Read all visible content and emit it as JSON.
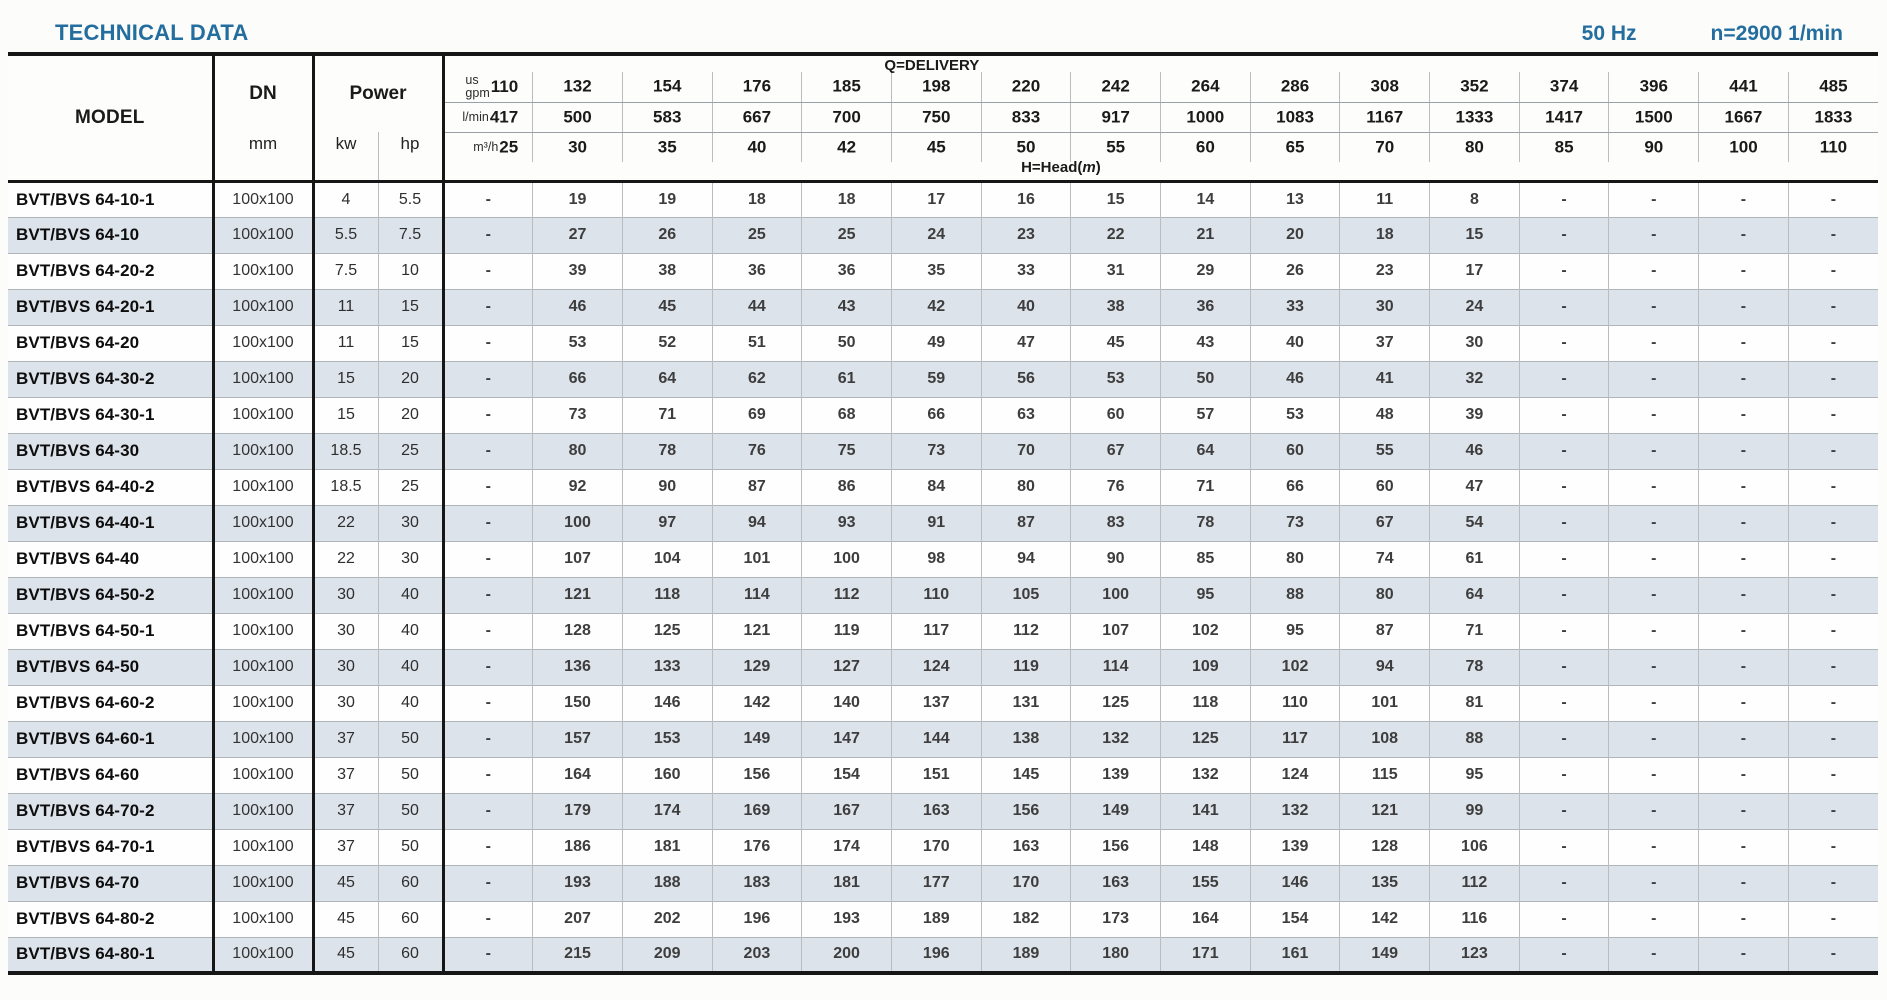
{
  "header": {
    "title": "TECHNICAL DATA",
    "frequency": "50 Hz",
    "speed": "n=2900 1/min",
    "accent_color": "#236d9f"
  },
  "table": {
    "model_header": "MODEL",
    "dn_header": "DN",
    "dn_unit": "mm",
    "power_header": "Power",
    "power_units": [
      "kw",
      "hp"
    ],
    "delivery_header": "Q=DELIVERY",
    "head_label_prefix": "H=Head(",
    "head_label_unit": "m",
    "head_label_suffix": ")",
    "stripe_color": "#dde3ea",
    "flow_units": [
      {
        "label_lines": [
          "us",
          "gpm"
        ],
        "values": [
          "110",
          "132",
          "154",
          "176",
          "185",
          "198",
          "220",
          "242",
          "264",
          "286",
          "308",
          "352",
          "374",
          "396",
          "441",
          "485"
        ]
      },
      {
        "label_lines": [
          "l/min"
        ],
        "values": [
          "417",
          "500",
          "583",
          "667",
          "700",
          "750",
          "833",
          "917",
          "1000",
          "1083",
          "1167",
          "1333",
          "1417",
          "1500",
          "1667",
          "1833"
        ]
      },
      {
        "label_lines": [
          "m³/h"
        ],
        "values": [
          "25",
          "30",
          "35",
          "40",
          "42",
          "45",
          "50",
          "55",
          "60",
          "65",
          "70",
          "80",
          "85",
          "90",
          "100",
          "110"
        ]
      }
    ],
    "rows": [
      {
        "model": "BVT/BVS 64-10-1",
        "dn": "100x100",
        "kw": "4",
        "hp": "5.5",
        "heads": [
          "-",
          "19",
          "19",
          "18",
          "18",
          "17",
          "16",
          "15",
          "14",
          "13",
          "11",
          "8",
          "-",
          "-",
          "-",
          "-"
        ]
      },
      {
        "model": "BVT/BVS 64-10",
        "dn": "100x100",
        "kw": "5.5",
        "hp": "7.5",
        "heads": [
          "-",
          "27",
          "26",
          "25",
          "25",
          "24",
          "23",
          "22",
          "21",
          "20",
          "18",
          "15",
          "-",
          "-",
          "-",
          "-"
        ]
      },
      {
        "model": "BVT/BVS 64-20-2",
        "dn": "100x100",
        "kw": "7.5",
        "hp": "10",
        "heads": [
          "-",
          "39",
          "38",
          "36",
          "36",
          "35",
          "33",
          "31",
          "29",
          "26",
          "23",
          "17",
          "-",
          "-",
          "-",
          "-"
        ]
      },
      {
        "model": "BVT/BVS 64-20-1",
        "dn": "100x100",
        "kw": "11",
        "hp": "15",
        "heads": [
          "-",
          "46",
          "45",
          "44",
          "43",
          "42",
          "40",
          "38",
          "36",
          "33",
          "30",
          "24",
          "-",
          "-",
          "-",
          "-"
        ]
      },
      {
        "model": "BVT/BVS 64-20",
        "dn": "100x100",
        "kw": "11",
        "hp": "15",
        "heads": [
          "-",
          "53",
          "52",
          "51",
          "50",
          "49",
          "47",
          "45",
          "43",
          "40",
          "37",
          "30",
          "-",
          "-",
          "-",
          "-"
        ]
      },
      {
        "model": "BVT/BVS 64-30-2",
        "dn": "100x100",
        "kw": "15",
        "hp": "20",
        "heads": [
          "-",
          "66",
          "64",
          "62",
          "61",
          "59",
          "56",
          "53",
          "50",
          "46",
          "41",
          "32",
          "-",
          "-",
          "-",
          "-"
        ]
      },
      {
        "model": "BVT/BVS 64-30-1",
        "dn": "100x100",
        "kw": "15",
        "hp": "20",
        "heads": [
          "-",
          "73",
          "71",
          "69",
          "68",
          "66",
          "63",
          "60",
          "57",
          "53",
          "48",
          "39",
          "-",
          "-",
          "-",
          "-"
        ]
      },
      {
        "model": "BVT/BVS 64-30",
        "dn": "100x100",
        "kw": "18.5",
        "hp": "25",
        "heads": [
          "-",
          "80",
          "78",
          "76",
          "75",
          "73",
          "70",
          "67",
          "64",
          "60",
          "55",
          "46",
          "-",
          "-",
          "-",
          "-"
        ]
      },
      {
        "model": "BVT/BVS 64-40-2",
        "dn": "100x100",
        "kw": "18.5",
        "hp": "25",
        "heads": [
          "-",
          "92",
          "90",
          "87",
          "86",
          "84",
          "80",
          "76",
          "71",
          "66",
          "60",
          "47",
          "-",
          "-",
          "-",
          "-"
        ]
      },
      {
        "model": "BVT/BVS 64-40-1",
        "dn": "100x100",
        "kw": "22",
        "hp": "30",
        "heads": [
          "-",
          "100",
          "97",
          "94",
          "93",
          "91",
          "87",
          "83",
          "78",
          "73",
          "67",
          "54",
          "-",
          "-",
          "-",
          "-"
        ]
      },
      {
        "model": "BVT/BVS 64-40",
        "dn": "100x100",
        "kw": "22",
        "hp": "30",
        "heads": [
          "-",
          "107",
          "104",
          "101",
          "100",
          "98",
          "94",
          "90",
          "85",
          "80",
          "74",
          "61",
          "-",
          "-",
          "-",
          "-"
        ]
      },
      {
        "model": "BVT/BVS 64-50-2",
        "dn": "100x100",
        "kw": "30",
        "hp": "40",
        "heads": [
          "-",
          "121",
          "118",
          "114",
          "112",
          "110",
          "105",
          "100",
          "95",
          "88",
          "80",
          "64",
          "-",
          "-",
          "-",
          "-"
        ]
      },
      {
        "model": "BVT/BVS 64-50-1",
        "dn": "100x100",
        "kw": "30",
        "hp": "40",
        "heads": [
          "-",
          "128",
          "125",
          "121",
          "119",
          "117",
          "112",
          "107",
          "102",
          "95",
          "87",
          "71",
          "-",
          "-",
          "-",
          "-"
        ]
      },
      {
        "model": "BVT/BVS 64-50",
        "dn": "100x100",
        "kw": "30",
        "hp": "40",
        "heads": [
          "-",
          "136",
          "133",
          "129",
          "127",
          "124",
          "119",
          "114",
          "109",
          "102",
          "94",
          "78",
          "-",
          "-",
          "-",
          "-"
        ]
      },
      {
        "model": "BVT/BVS 64-60-2",
        "dn": "100x100",
        "kw": "30",
        "hp": "40",
        "heads": [
          "-",
          "150",
          "146",
          "142",
          "140",
          "137",
          "131",
          "125",
          "118",
          "110",
          "101",
          "81",
          "-",
          "-",
          "-",
          "-"
        ]
      },
      {
        "model": "BVT/BVS 64-60-1",
        "dn": "100x100",
        "kw": "37",
        "hp": "50",
        "heads": [
          "-",
          "157",
          "153",
          "149",
          "147",
          "144",
          "138",
          "132",
          "125",
          "117",
          "108",
          "88",
          "-",
          "-",
          "-",
          "-"
        ]
      },
      {
        "model": "BVT/BVS 64-60",
        "dn": "100x100",
        "kw": "37",
        "hp": "50",
        "heads": [
          "-",
          "164",
          "160",
          "156",
          "154",
          "151",
          "145",
          "139",
          "132",
          "124",
          "115",
          "95",
          "-",
          "-",
          "-",
          "-"
        ]
      },
      {
        "model": "BVT/BVS 64-70-2",
        "dn": "100x100",
        "kw": "37",
        "hp": "50",
        "heads": [
          "-",
          "179",
          "174",
          "169",
          "167",
          "163",
          "156",
          "149",
          "141",
          "132",
          "121",
          "99",
          "-",
          "-",
          "-",
          "-"
        ]
      },
      {
        "model": "BVT/BVS 64-70-1",
        "dn": "100x100",
        "kw": "37",
        "hp": "50",
        "heads": [
          "-",
          "186",
          "181",
          "176",
          "174",
          "170",
          "163",
          "156",
          "148",
          "139",
          "128",
          "106",
          "-",
          "-",
          "-",
          "-"
        ]
      },
      {
        "model": "BVT/BVS 64-70",
        "dn": "100x100",
        "kw": "45",
        "hp": "60",
        "heads": [
          "-",
          "193",
          "188",
          "183",
          "181",
          "177",
          "170",
          "163",
          "155",
          "146",
          "135",
          "112",
          "-",
          "-",
          "-",
          "-"
        ]
      },
      {
        "model": "BVT/BVS 64-80-2",
        "dn": "100x100",
        "kw": "45",
        "hp": "60",
        "heads": [
          "-",
          "207",
          "202",
          "196",
          "193",
          "189",
          "182",
          "173",
          "164",
          "154",
          "142",
          "116",
          "-",
          "-",
          "-",
          "-"
        ]
      },
      {
        "model": "BVT/BVS 64-80-1",
        "dn": "100x100",
        "kw": "45",
        "hp": "60",
        "heads": [
          "-",
          "215",
          "209",
          "203",
          "200",
          "196",
          "189",
          "180",
          "171",
          "161",
          "149",
          "123",
          "-",
          "-",
          "-",
          "-"
        ]
      }
    ]
  }
}
